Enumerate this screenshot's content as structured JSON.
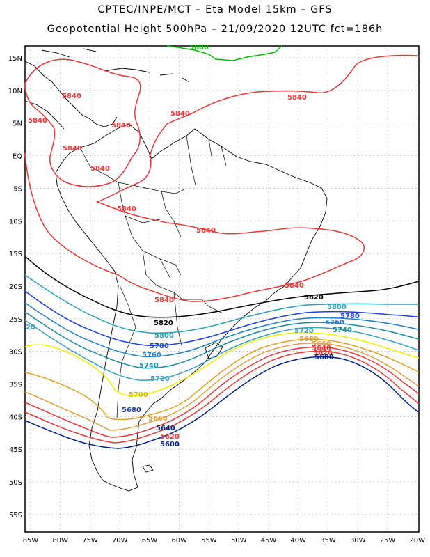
{
  "header": {
    "title_line1": "CPTEC/INPE/MCT –  Eta Model 15km – GFS",
    "title_line2": "Geopotential Height 500hPa – 21/09/2020 12UTC fct=186h"
  },
  "axes": {
    "lon_labels": [
      "85W",
      "80W",
      "75W",
      "70W",
      "65W",
      "60W",
      "55W",
      "50W",
      "45W",
      "40W",
      "35W",
      "30W",
      "25W",
      "20W"
    ],
    "lat_labels": [
      "15N",
      "10N",
      "5N",
      "EQ",
      "5S",
      "10S",
      "15S",
      "20S",
      "25S",
      "30S",
      "35S",
      "40S",
      "45S",
      "50S",
      "55S"
    ]
  },
  "colors": {
    "c5880": "#00c000",
    "c5840": "#e83838",
    "c5820": "#000000",
    "c5800": "#2aa0b8",
    "c5780": "#1e40e0",
    "c5760": "#2080c8",
    "c5740": "#1e8aa0",
    "c5720": "#3aa0c0",
    "c5700": "#f0f000",
    "c5680": "#e0a020",
    "c5660": "#e0a040",
    "c5640": "#e83838",
    "c5620": "#e83838",
    "c5600": "#00208a"
  },
  "contour_labels": {
    "l5880": "5880",
    "l5840a": "5840",
    "l5840b": "5840",
    "l5840c": "5840",
    "l5840d": "5840",
    "l5840e": "5840",
    "l5840f": "5840",
    "l5840g": "5840",
    "l5840h": "5840",
    "l5840i": "5840",
    "l5840j": "5840",
    "l5820a": "5820",
    "l5820b": "5820",
    "l5800a": "5800",
    "l5800b": "5800",
    "l5780a": "5780",
    "l5780b": "5780",
    "l5760a": "5760",
    "l5760b": "5760",
    "l5740a": "5740",
    "l5740b": "5740",
    "l5720a": "5720",
    "l5720b": "5720",
    "l5720c": "20",
    "l5700": "5700",
    "l5680a": "5680",
    "l5680b": "5680",
    "l5660a": "5660",
    "l5660b": "5660",
    "l5640a": "5640",
    "l5640b": "5640",
    "l5620a": "5620",
    "l5620b": "5620",
    "l5600a": "5600",
    "l5600b": "5600"
  }
}
